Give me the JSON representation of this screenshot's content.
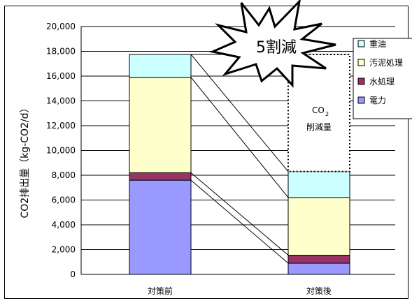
{
  "chart_data": {
    "type": "bar",
    "stacked": true,
    "categories": [
      "対策前",
      "対策後"
    ],
    "series": [
      {
        "name": "電力",
        "values": [
          7600,
          900
        ],
        "color": "#9999ff"
      },
      {
        "name": "水処理",
        "values": [
          600,
          650
        ],
        "color": "#993366"
      },
      {
        "name": "汚泥処理",
        "values": [
          7700,
          4650
        ],
        "color": "#ffffcc"
      },
      {
        "name": "重油",
        "values": [
          1850,
          2100
        ],
        "color": "#ccffff"
      }
    ],
    "ylabel": "CO2排出量（kg-CO2/d）",
    "ylim": [
      0,
      20000
    ],
    "yticks": [
      "0",
      "2,000",
      "4,000",
      "6,000",
      "8,000",
      "10,000",
      "12,000",
      "14,000",
      "16,000",
      "18,000",
      "20,000"
    ],
    "grid": true,
    "legend_position": "top-right",
    "legend_order": [
      "重油",
      "汚泥処理",
      "水処理",
      "電力"
    ],
    "annotations": {
      "starburst": "5割減",
      "reduction_label_line1": "CO",
      "reduction_label_sub": "2",
      "reduction_label_line2": "削減量"
    }
  }
}
